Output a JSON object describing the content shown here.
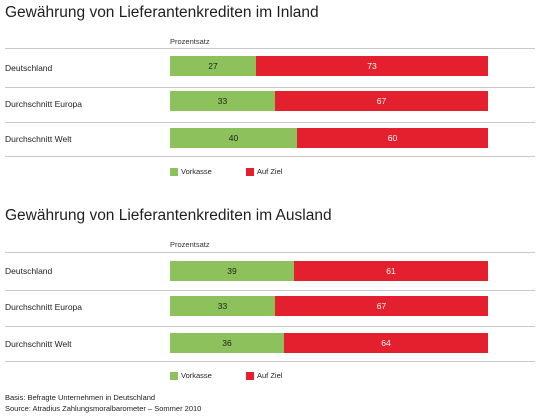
{
  "colors": {
    "green": "#8dc15c",
    "red": "#e5202e"
  },
  "chart_data": [
    {
      "type": "bar",
      "orientation": "horizontal",
      "stacked": true,
      "title": "Gewährung von Lieferantenkrediten im Inland",
      "subtitle": "Prozentsatz",
      "categories": [
        "Deutschland",
        "Durchschnitt Europa",
        "Durchschnitt Welt"
      ],
      "series": [
        {
          "name": "Vorkasse",
          "values": [
            27,
            33,
            40
          ]
        },
        {
          "name": "Auf Ziel",
          "values": [
            73,
            67,
            60
          ]
        }
      ],
      "xlim": [
        0,
        100
      ],
      "legend_position": "bottom"
    },
    {
      "type": "bar",
      "orientation": "horizontal",
      "stacked": true,
      "title": "Gewährung von Lieferantenkrediten im Ausland",
      "subtitle": "Prozentsatz",
      "categories": [
        "Deutschland",
        "Durchschnitt Europa",
        "Durchschnitt Welt"
      ],
      "series": [
        {
          "name": "Vorkasse",
          "values": [
            39,
            33,
            36
          ]
        },
        {
          "name": "Auf Ziel",
          "values": [
            61,
            67,
            64
          ]
        }
      ],
      "xlim": [
        0,
        100
      ],
      "legend_position": "bottom"
    }
  ],
  "footnotes": {
    "basis": "Basis: Befragte Unternehmen in Deutschland",
    "source": "Source: Atradius Zahlungsmoralbarometer – Sommer 2010"
  }
}
